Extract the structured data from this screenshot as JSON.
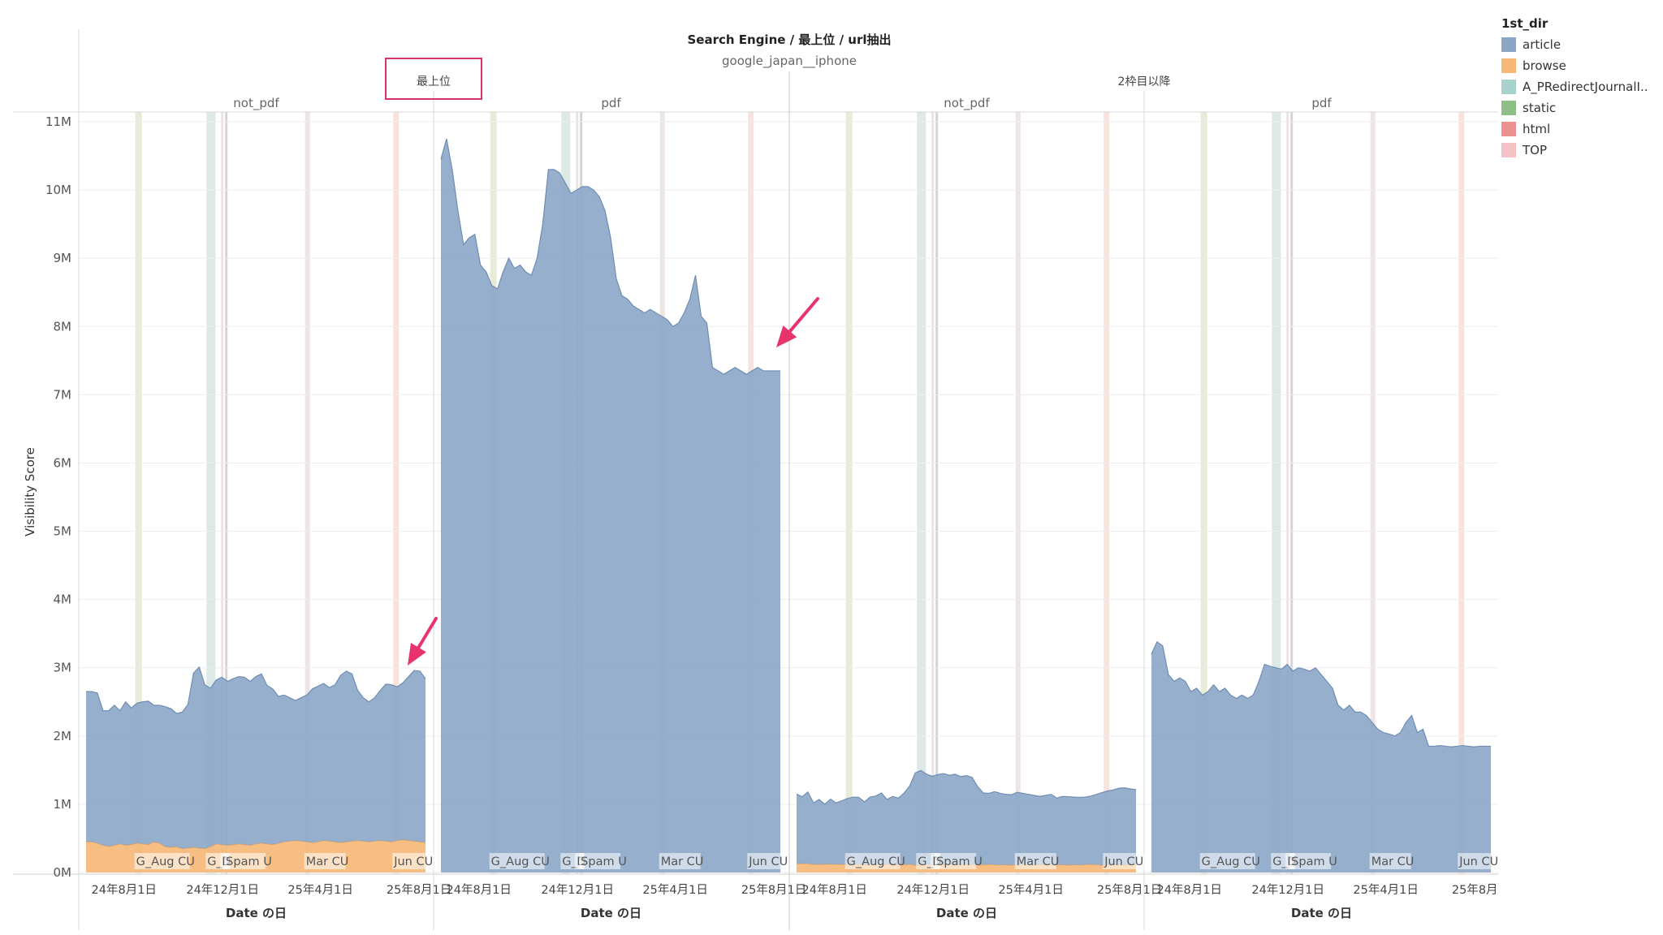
{
  "header": {
    "title": "Search Engine / 最上位 / url抽出",
    "subtitle": "google_japan__iphone"
  },
  "legend": {
    "title": "1st_dir",
    "items": [
      {
        "label": "article",
        "color": "#8ba6c7"
      },
      {
        "label": "browse",
        "color": "#f6b777"
      },
      {
        "label": "A_PRedirectJournalI..",
        "color": "#a8d2cc"
      },
      {
        "label": "static",
        "color": "#8ebf86"
      },
      {
        "label": "html",
        "color": "#ec9190"
      },
      {
        "label": "TOP",
        "color": "#f6c2c6"
      }
    ]
  },
  "chart_data": {
    "type": "area",
    "ylabel": "Visibility Score",
    "xlabel": "Date の日",
    "yticks": [
      "0M",
      "1M",
      "2M",
      "3M",
      "4M",
      "5M",
      "6M",
      "7M",
      "8M",
      "9M",
      "10M",
      "11M"
    ],
    "ylim": [
      0,
      11300000
    ],
    "xlim": [
      "2024-06-06",
      "2025-08-19"
    ],
    "xticks": [
      {
        "date": "2024-08-01",
        "label": "24年8月1日"
      },
      {
        "date": "2024-12-01",
        "label": "24年12月1日"
      },
      {
        "date": "2025-04-01",
        "label": "25年4月1日"
      },
      {
        "date": "2025-08-01",
        "label": "25年8月1日"
      }
    ],
    "events": [
      {
        "label": "G_Aug CU",
        "start": "2024-08-15",
        "end": "2024-08-23",
        "color": "#e8ebd8"
      },
      {
        "label": "G_N",
        "start": "2024-11-11",
        "end": "2024-11-22",
        "color": "#dde9e6"
      },
      {
        "label": "D",
        "start": "2024-11-29",
        "end": "2024-12-02",
        "color": "#ece2e6"
      },
      {
        "label": "Spam U",
        "start": "2024-12-04",
        "end": "2024-12-07",
        "color": "#d4d4d4"
      },
      {
        "label": "Mar CU",
        "start": "2025-03-13",
        "end": "2025-03-19",
        "color": "#ece5e3"
      },
      {
        "label": "Jun CU",
        "start": "2025-06-30",
        "end": "2025-07-07",
        "color": "#f8e3dc"
      }
    ],
    "top_groups": [
      {
        "label": "最上位",
        "panel_span": [
          0,
          1
        ]
      },
      {
        "label": "2枠目以降",
        "panel_span": [
          2,
          3
        ]
      }
    ],
    "series_meta": [
      {
        "name": "browse",
        "color": "#f6b777"
      },
      {
        "name": "article",
        "color": "#8ba6c7"
      }
    ],
    "panels": [
      {
        "label": "not_pdf",
        "dates": [
          "2024-06-15",
          "2024-06-22",
          "2024-06-29",
          "2024-07-06",
          "2024-07-13",
          "2024-07-20",
          "2024-07-27",
          "2024-08-03",
          "2024-08-10",
          "2024-08-17",
          "2024-08-24",
          "2024-08-31",
          "2024-09-07",
          "2024-09-14",
          "2024-09-21",
          "2024-09-28",
          "2024-10-05",
          "2024-10-12",
          "2024-10-19",
          "2024-10-26",
          "2024-11-02",
          "2024-11-09",
          "2024-11-16",
          "2024-11-23",
          "2024-11-30",
          "2024-12-07",
          "2024-12-14",
          "2024-12-21",
          "2024-12-28",
          "2025-01-04",
          "2025-01-11",
          "2025-01-18",
          "2025-01-25",
          "2025-02-01",
          "2025-02-08",
          "2025-02-15",
          "2025-02-22",
          "2025-03-01",
          "2025-03-08",
          "2025-03-15",
          "2025-03-22",
          "2025-03-29",
          "2025-04-05",
          "2025-04-12",
          "2025-04-19",
          "2025-04-26",
          "2025-05-03",
          "2025-05-10",
          "2025-05-17",
          "2025-05-24",
          "2025-05-31",
          "2025-06-07",
          "2025-06-14",
          "2025-06-21",
          "2025-06-28",
          "2025-07-05",
          "2025-07-12",
          "2025-07-19",
          "2025-07-26",
          "2025-08-02",
          "2025-08-09"
        ],
        "series": [
          {
            "name": "browse",
            "values": [
              450000,
              450000,
              430000,
              400000,
              380000,
              400000,
              420000,
              400000,
              410000,
              430000,
              420000,
              410000,
              450000,
              430000,
              380000,
              370000,
              380000,
              350000,
              360000,
              370000,
              360000,
              350000,
              380000,
              420000,
              410000,
              400000,
              410000,
              420000,
              410000,
              400000,
              420000,
              430000,
              420000,
              410000,
              430000,
              450000,
              460000,
              470000,
              460000,
              450000,
              440000,
              450000,
              470000,
              460000,
              450000,
              440000,
              450000,
              460000,
              470000,
              460000,
              450000,
              460000,
              470000,
              460000,
              450000,
              470000,
              480000,
              470000,
              460000,
              450000,
              440000
            ]
          },
          {
            "name": "article",
            "values": [
              2200000,
              2200000,
              2200000,
              1970000,
              1990000,
              2050000,
              1950000,
              2100000,
              2000000,
              2050000,
              2080000,
              2100000,
              2000000,
              2020000,
              2050000,
              2030000,
              1950000,
              2000000,
              2100000,
              2550000,
              2650000,
              2400000,
              2320000,
              2400000,
              2450000,
              2400000,
              2430000,
              2450000,
              2450000,
              2400000,
              2450000,
              2480000,
              2320000,
              2280000,
              2150000,
              2150000,
              2100000,
              2050000,
              2100000,
              2150000,
              2250000,
              2280000,
              2300000,
              2250000,
              2300000,
              2450000,
              2500000,
              2450000,
              2200000,
              2100000,
              2050000,
              2100000,
              2200000,
              2300000,
              2300000,
              2250000,
              2300000,
              2400000,
              2500000,
              2500000,
              2400000
            ]
          }
        ]
      },
      {
        "label": "pdf",
        "dates": [
          "2024-06-15",
          "2024-06-22",
          "2024-06-29",
          "2024-07-06",
          "2024-07-13",
          "2024-07-20",
          "2024-07-27",
          "2024-08-03",
          "2024-08-10",
          "2024-08-17",
          "2024-08-24",
          "2024-08-31",
          "2024-09-07",
          "2024-09-14",
          "2024-09-21",
          "2024-09-28",
          "2024-10-05",
          "2024-10-12",
          "2024-10-19",
          "2024-10-26",
          "2024-11-02",
          "2024-11-09",
          "2024-11-16",
          "2024-11-23",
          "2024-11-30",
          "2024-12-07",
          "2024-12-14",
          "2024-12-21",
          "2024-12-28",
          "2025-01-04",
          "2025-01-11",
          "2025-01-18",
          "2025-01-25",
          "2025-02-01",
          "2025-02-08",
          "2025-02-15",
          "2025-02-22",
          "2025-03-01",
          "2025-03-08",
          "2025-03-15",
          "2025-03-22",
          "2025-03-29",
          "2025-04-05",
          "2025-04-12",
          "2025-04-19",
          "2025-04-26",
          "2025-05-03",
          "2025-05-10",
          "2025-05-17",
          "2025-05-24",
          "2025-05-31",
          "2025-06-07",
          "2025-06-14",
          "2025-06-21",
          "2025-06-28",
          "2025-07-05",
          "2025-07-12",
          "2025-07-19",
          "2025-07-26",
          "2025-08-02",
          "2025-08-09"
        ],
        "series": [
          {
            "name": "browse",
            "values": [
              0,
              0,
              0,
              0,
              0,
              0,
              0,
              0,
              0,
              0,
              0,
              0,
              0,
              0,
              0,
              0,
              0,
              0,
              0,
              0,
              0,
              0,
              0,
              0,
              0,
              0,
              0,
              0,
              0,
              0,
              0,
              0,
              0,
              0,
              0,
              0,
              0,
              0,
              0,
              0,
              0,
              0,
              0,
              0,
              0,
              0,
              0,
              0,
              0,
              0,
              0,
              0,
              0,
              0,
              0,
              0,
              0,
              0,
              0,
              0,
              0
            ]
          },
          {
            "name": "article",
            "values": [
              10450000,
              10750000,
              10300000,
              9700000,
              9200000,
              9300000,
              9350000,
              8900000,
              8800000,
              8600000,
              8550000,
              8800000,
              9000000,
              8850000,
              8900000,
              8800000,
              8750000,
              9000000,
              9500000,
              10300000,
              10300000,
              10250000,
              10100000,
              9950000,
              10000000,
              10050000,
              10050000,
              10000000,
              9900000,
              9700000,
              9300000,
              8700000,
              8450000,
              8400000,
              8300000,
              8250000,
              8200000,
              8250000,
              8200000,
              8150000,
              8100000,
              8000000,
              8050000,
              8200000,
              8400000,
              8750000,
              8150000,
              8050000,
              7400000,
              7350000,
              7300000,
              7350000,
              7400000,
              7350000,
              7300000,
              7350000,
              7400000,
              7350000,
              7350000,
              7350000,
              7350000
            ]
          }
        ]
      },
      {
        "label": "not_pdf",
        "dates": [
          "2024-06-15",
          "2024-06-22",
          "2024-06-29",
          "2024-07-06",
          "2024-07-13",
          "2024-07-20",
          "2024-07-27",
          "2024-08-03",
          "2024-08-10",
          "2024-08-17",
          "2024-08-24",
          "2024-08-31",
          "2024-09-07",
          "2024-09-14",
          "2024-09-21",
          "2024-09-28",
          "2024-10-05",
          "2024-10-12",
          "2024-10-19",
          "2024-10-26",
          "2024-11-02",
          "2024-11-09",
          "2024-11-16",
          "2024-11-23",
          "2024-11-30",
          "2024-12-07",
          "2024-12-14",
          "2024-12-21",
          "2024-12-28",
          "2025-01-04",
          "2025-01-11",
          "2025-01-18",
          "2025-01-25",
          "2025-02-01",
          "2025-02-08",
          "2025-02-15",
          "2025-02-22",
          "2025-03-01",
          "2025-03-08",
          "2025-03-15",
          "2025-03-22",
          "2025-03-29",
          "2025-04-05",
          "2025-04-12",
          "2025-04-19",
          "2025-04-26",
          "2025-05-03",
          "2025-05-10",
          "2025-05-17",
          "2025-05-24",
          "2025-05-31",
          "2025-06-07",
          "2025-06-14",
          "2025-06-21",
          "2025-06-28",
          "2025-07-05",
          "2025-07-12",
          "2025-07-19",
          "2025-07-26",
          "2025-08-02",
          "2025-08-09"
        ],
        "series": [
          {
            "name": "browse",
            "values": [
              130000,
              130000,
              130000,
              120000,
              120000,
              120000,
              125000,
              120000,
              120000,
              115000,
              115000,
              120000,
              115000,
              115000,
              120000,
              115000,
              120000,
              115000,
              120000,
              115000,
              120000,
              110000,
              115000,
              120000,
              110000,
              115000,
              120000,
              115000,
              110000,
              115000,
              120000,
              115000,
              110000,
              115000,
              120000,
              115000,
              110000,
              115000,
              110000,
              115000,
              120000,
              115000,
              110000,
              115000,
              120000,
              115000,
              110000,
              115000,
              110000,
              115000,
              110000,
              115000,
              120000,
              115000,
              110000,
              115000,
              120000,
              115000,
              110000,
              115000,
              115000
            ]
          },
          {
            "name": "article",
            "values": [
              1020000,
              980000,
              1050000,
              900000,
              950000,
              880000,
              950000,
              900000,
              930000,
              970000,
              990000,
              980000,
              920000,
              990000,
              1000000,
              1050000,
              950000,
              1000000,
              970000,
              1050000,
              1150000,
              1350000,
              1380000,
              1320000,
              1300000,
              1320000,
              1330000,
              1310000,
              1330000,
              1290000,
              1300000,
              1280000,
              1150000,
              1050000,
              1040000,
              1070000,
              1050000,
              1030000,
              1030000,
              1060000,
              1040000,
              1030000,
              1020000,
              1000000,
              1010000,
              1030000,
              980000,
              1000000,
              1000000,
              990000,
              990000,
              990000,
              1000000,
              1030000,
              1060000,
              1080000,
              1090000,
              1120000,
              1130000,
              1110000,
              1100000
            ]
          }
        ]
      },
      {
        "label": "pdf",
        "dates": [
          "2024-06-15",
          "2024-06-22",
          "2024-06-29",
          "2024-07-06",
          "2024-07-13",
          "2024-07-20",
          "2024-07-27",
          "2024-08-03",
          "2024-08-10",
          "2024-08-17",
          "2024-08-24",
          "2024-08-31",
          "2024-09-07",
          "2024-09-14",
          "2024-09-21",
          "2024-09-28",
          "2024-10-05",
          "2024-10-12",
          "2024-10-19",
          "2024-10-26",
          "2024-11-02",
          "2024-11-09",
          "2024-11-16",
          "2024-11-23",
          "2024-11-30",
          "2024-12-07",
          "2024-12-14",
          "2024-12-21",
          "2024-12-28",
          "2025-01-04",
          "2025-01-11",
          "2025-01-18",
          "2025-01-25",
          "2025-02-01",
          "2025-02-08",
          "2025-02-15",
          "2025-02-22",
          "2025-03-01",
          "2025-03-08",
          "2025-03-15",
          "2025-03-22",
          "2025-03-29",
          "2025-04-05",
          "2025-04-12",
          "2025-04-19",
          "2025-04-26",
          "2025-05-03",
          "2025-05-10",
          "2025-05-17",
          "2025-05-24",
          "2025-05-31",
          "2025-06-07",
          "2025-06-14",
          "2025-06-21",
          "2025-06-28",
          "2025-07-05",
          "2025-07-12",
          "2025-07-19",
          "2025-07-26",
          "2025-08-02",
          "2025-08-09"
        ],
        "series": [
          {
            "name": "browse",
            "values": [
              0,
              0,
              0,
              0,
              0,
              0,
              0,
              0,
              0,
              0,
              0,
              0,
              0,
              0,
              0,
              0,
              0,
              0,
              0,
              0,
              0,
              0,
              0,
              0,
              0,
              0,
              0,
              0,
              0,
              0,
              0,
              0,
              0,
              0,
              0,
              0,
              0,
              0,
              0,
              0,
              0,
              0,
              0,
              0,
              0,
              0,
              0,
              0,
              0,
              0,
              0,
              0,
              0,
              0,
              0,
              0,
              0,
              0,
              0,
              0,
              0
            ]
          },
          {
            "name": "article",
            "values": [
              3200000,
              3380000,
              3320000,
              2900000,
              2800000,
              2850000,
              2800000,
              2650000,
              2700000,
              2600000,
              2650000,
              2750000,
              2650000,
              2700000,
              2600000,
              2550000,
              2600000,
              2550000,
              2600000,
              2800000,
              3050000,
              3020000,
              3000000,
              2980000,
              3050000,
              2950000,
              3000000,
              2980000,
              2950000,
              3000000,
              2900000,
              2800000,
              2700000,
              2450000,
              2380000,
              2450000,
              2350000,
              2350000,
              2300000,
              2200000,
              2100000,
              2050000,
              2030000,
              2000000,
              2050000,
              2200000,
              2300000,
              2050000,
              2100000,
              1850000,
              1850000,
              1860000,
              1850000,
              1840000,
              1850000,
              1860000,
              1850000,
              1840000,
              1850000,
              1850000,
              1850000
            ]
          }
        ]
      }
    ],
    "annotations": [
      "最上位"
    ]
  }
}
